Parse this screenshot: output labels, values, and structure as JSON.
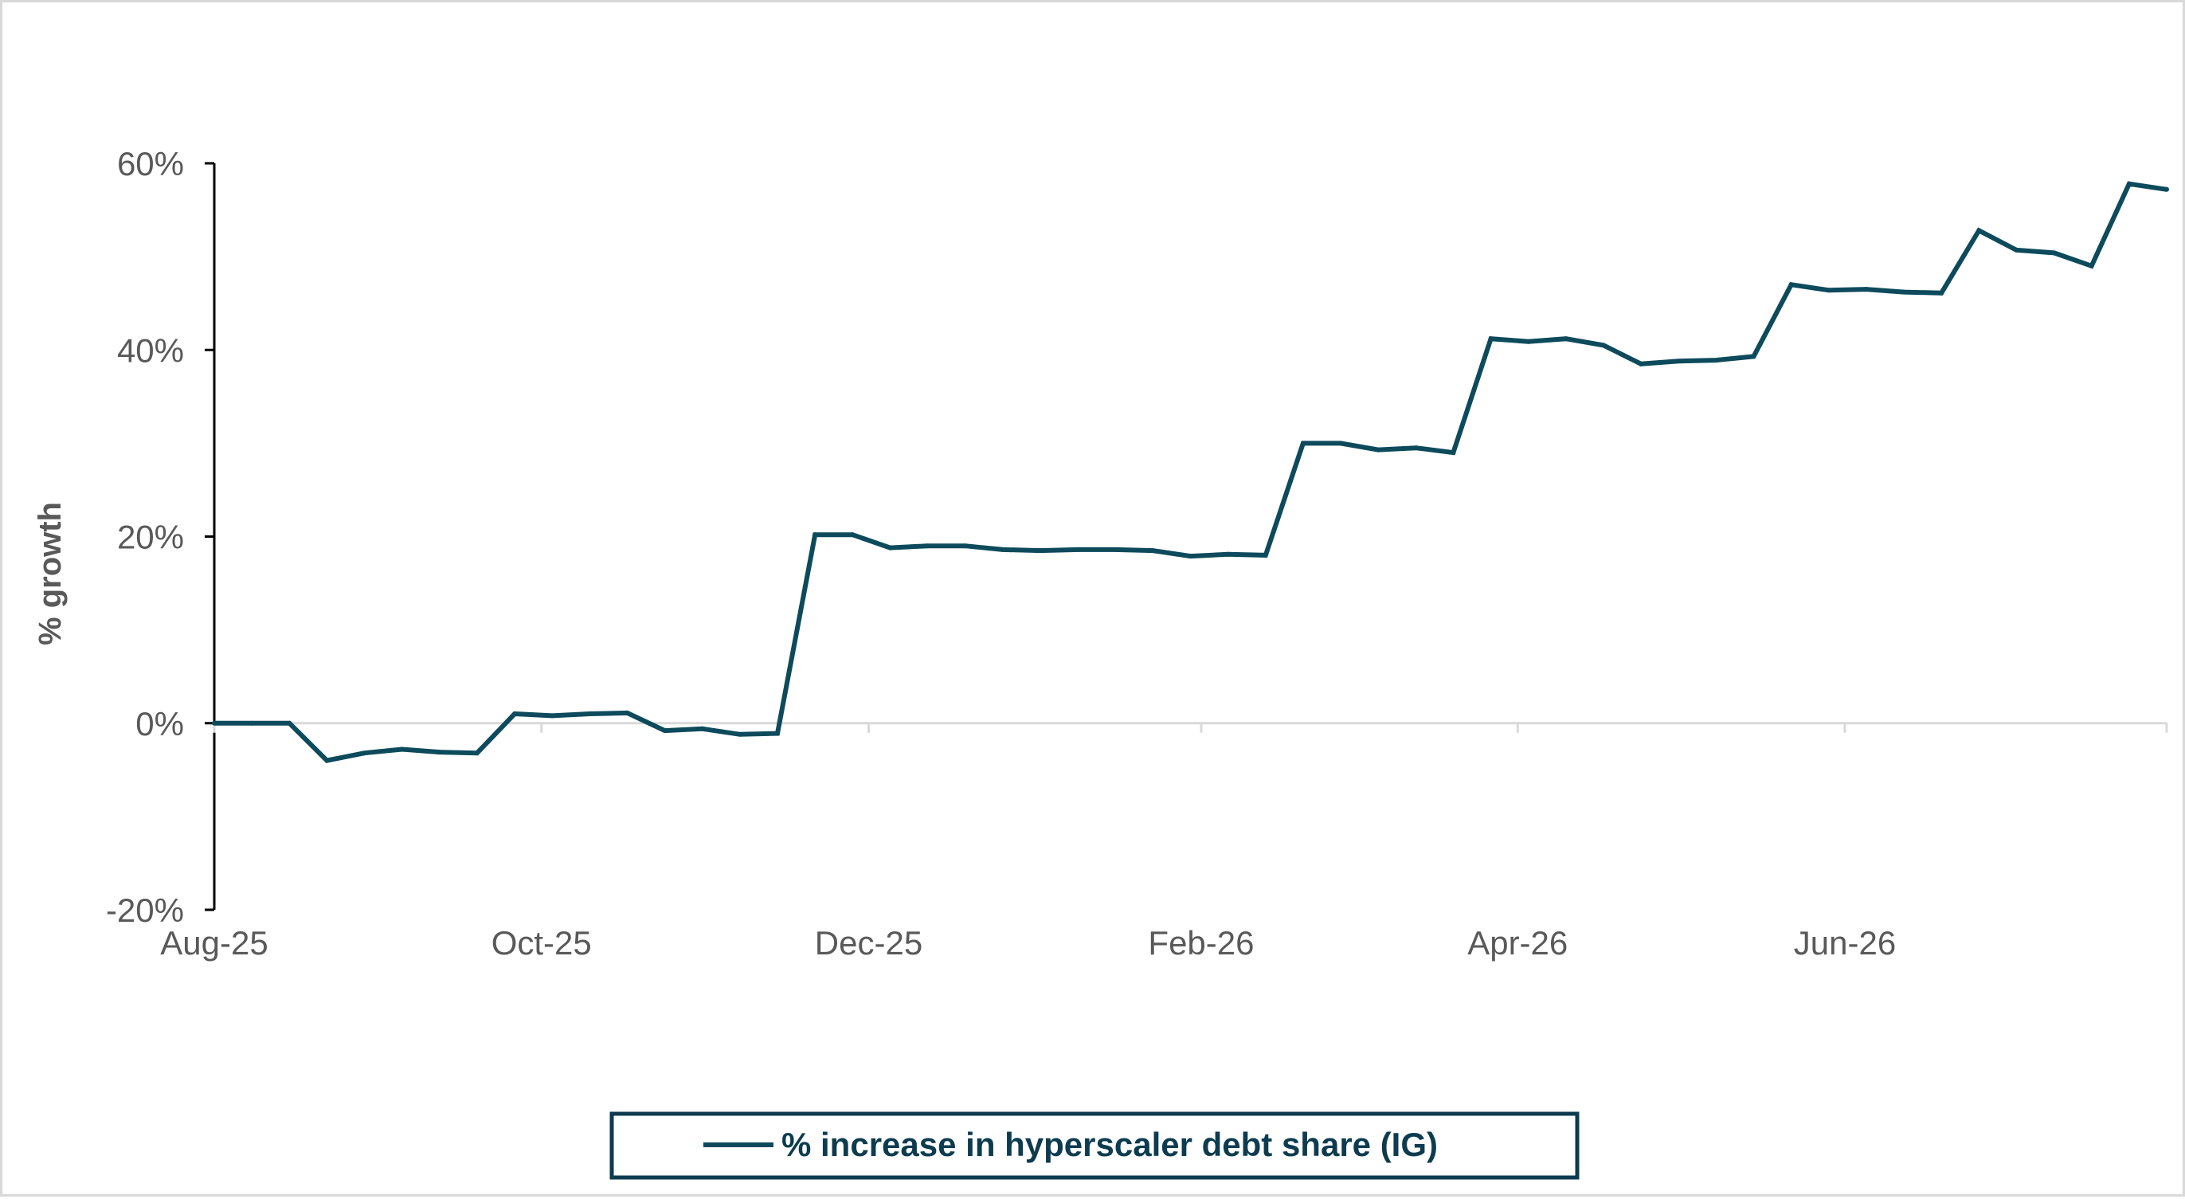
{
  "chart_data": {
    "type": "line",
    "title": "",
    "xlabel": "",
    "ylabel": "% growth",
    "ylim": [
      -0.2,
      0.6
    ],
    "yticks": [
      -0.2,
      0,
      0.2,
      0.4,
      0.6
    ],
    "ytick_labels": [
      "-20%",
      "0%",
      "20%",
      "40%",
      "60%"
    ],
    "xticks": [
      "2025-08-01",
      "2025-10-01",
      "2025-12-01",
      "2026-02-01",
      "2026-04-01",
      "2026-06-01"
    ],
    "xtick_labels": [
      "Aug-25",
      "Oct-25",
      "Dec-25",
      "Feb-26",
      "Apr-26",
      "Jun-26"
    ],
    "xlim": [
      "2025-08-01",
      "2026-07-31"
    ],
    "grid": false,
    "legend_position": "bottom",
    "colors": {
      "series": "#0d4a5c",
      "axis": "#000000",
      "zero_line": "#d9d9d9",
      "text": "#595959",
      "legend_border": "#0d3b4f"
    },
    "series": [
      {
        "name": "% increase in hyperscaler debt share (IG)",
        "x": [
          "2025-08-01",
          "2025-08-08",
          "2025-08-15",
          "2025-08-22",
          "2025-08-29",
          "2025-09-05",
          "2025-09-12",
          "2025-09-19",
          "2025-09-26",
          "2025-10-03",
          "2025-10-10",
          "2025-10-17",
          "2025-10-24",
          "2025-10-31",
          "2025-11-07",
          "2025-11-14",
          "2025-11-21",
          "2025-11-28",
          "2025-12-05",
          "2025-12-12",
          "2025-12-19",
          "2025-12-26",
          "2026-01-02",
          "2026-01-09",
          "2026-01-16",
          "2026-01-23",
          "2026-01-30",
          "2026-02-06",
          "2026-02-13",
          "2026-02-20",
          "2026-02-27",
          "2026-03-06",
          "2026-03-13",
          "2026-03-20",
          "2026-03-27",
          "2026-04-03",
          "2026-04-10",
          "2026-04-17",
          "2026-04-24",
          "2026-05-01",
          "2026-05-08",
          "2026-05-15",
          "2026-05-22",
          "2026-05-29",
          "2026-06-05",
          "2026-06-12",
          "2026-06-19",
          "2026-06-26",
          "2026-07-03",
          "2026-07-10",
          "2026-07-17",
          "2026-07-24",
          "2026-07-31"
        ],
        "values": [
          0.0,
          0.0,
          0.0,
          -0.04,
          -0.032,
          -0.028,
          -0.031,
          -0.032,
          0.01,
          0.008,
          0.01,
          0.011,
          -0.008,
          -0.006,
          -0.012,
          -0.011,
          0.202,
          0.202,
          0.188,
          0.19,
          0.19,
          0.186,
          0.185,
          0.186,
          0.186,
          0.185,
          0.179,
          0.181,
          0.18,
          0.3,
          0.3,
          0.293,
          0.295,
          0.29,
          0.412,
          0.409,
          0.412,
          0.405,
          0.385,
          0.388,
          0.389,
          0.393,
          0.47,
          0.464,
          0.465,
          0.462,
          0.461,
          0.528,
          0.507,
          0.504,
          0.49,
          0.578,
          0.572
        ]
      }
    ]
  }
}
